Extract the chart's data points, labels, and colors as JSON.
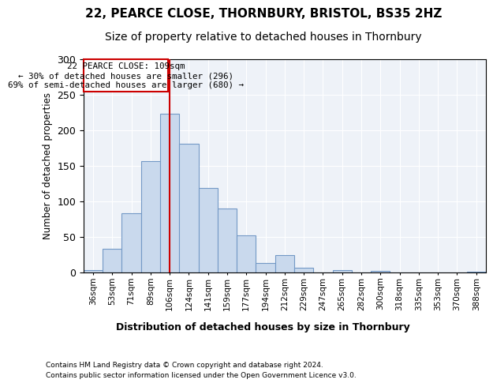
{
  "title": "22, PEARCE CLOSE, THORNBURY, BRISTOL, BS35 2HZ",
  "subtitle": "Size of property relative to detached houses in Thornbury",
  "xlabel": "Distribution of detached houses by size in Thornbury",
  "ylabel": "Number of detached properties",
  "bar_labels": [
    "36sqm",
    "53sqm",
    "71sqm",
    "89sqm",
    "106sqm",
    "124sqm",
    "141sqm",
    "159sqm",
    "177sqm",
    "194sqm",
    "212sqm",
    "229sqm",
    "247sqm",
    "265sqm",
    "282sqm",
    "300sqm",
    "318sqm",
    "335sqm",
    "353sqm",
    "370sqm",
    "388sqm"
  ],
  "bar_values": [
    3,
    33,
    83,
    157,
    223,
    181,
    119,
    90,
    52,
    13,
    25,
    7,
    0,
    3,
    0,
    2,
    0,
    0,
    0,
    0,
    1
  ],
  "bar_color": "#c9d9ed",
  "bar_edge_color": "#7399c6",
  "property_line_x": 4,
  "property_line_label": "22 PEARCE CLOSE: 109sqm",
  "annotation_line1": "← 30% of detached houses are smaller (296)",
  "annotation_line2": "69% of semi-detached houses are larger (680) →",
  "line_color": "#cc0000",
  "box_color": "#cc0000",
  "ylim": [
    0,
    300
  ],
  "yticks": [
    0,
    50,
    100,
    150,
    200,
    250,
    300
  ],
  "footnote1": "Contains HM Land Registry data © Crown copyright and database right 2024.",
  "footnote2": "Contains public sector information licensed under the Open Government Licence v3.0.",
  "bg_color": "#eef2f8",
  "title_fontsize": 11,
  "subtitle_fontsize": 10
}
